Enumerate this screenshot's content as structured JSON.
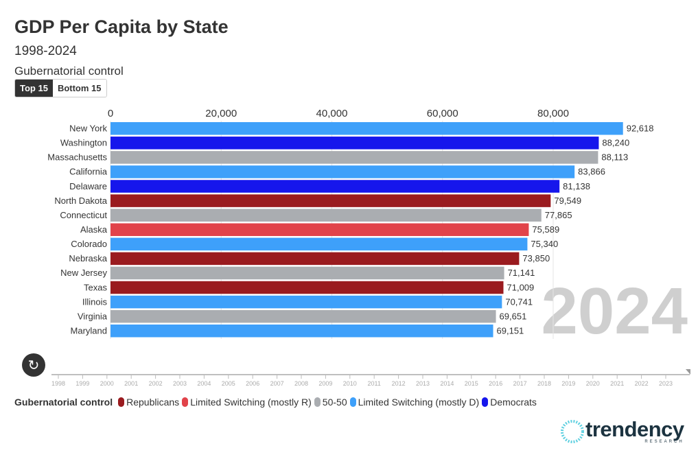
{
  "header": {
    "title": "GDP Per Capita by State",
    "subtitle": "1998-2024",
    "control_label": "Gubernatorial control"
  },
  "toggle": {
    "options": [
      "Top 15",
      "Bottom 15"
    ],
    "selected": "Top 15"
  },
  "colors": {
    "Republicans": "#9a1b1f",
    "Limited Switching (mostly R)": "#e1434a",
    "50-50": "#aaadb1",
    "Limited Switching (mostly D)": "#3ea0fa",
    "Democrats": "#1616ec"
  },
  "chart_data": {
    "type": "bar",
    "orientation": "horizontal",
    "title": "GDP Per Capita by State",
    "subtitle": "1998-2024",
    "year_label": "2024",
    "xlim": [
      0,
      100000
    ],
    "x_ticks": [
      0,
      20000,
      40000,
      60000,
      80000
    ],
    "x_tick_labels": [
      "0",
      "20,000",
      "40,000",
      "60,000",
      "80,000"
    ],
    "categories": [
      "New York",
      "Washington",
      "Massachusetts",
      "California",
      "Delaware",
      "North Dakota",
      "Connecticut",
      "Alaska",
      "Colorado",
      "Nebraska",
      "New Jersey",
      "Texas",
      "Illinois",
      "Virginia",
      "Maryland"
    ],
    "values": [
      92618,
      88240,
      88113,
      83866,
      81138,
      79549,
      77865,
      75589,
      75340,
      73850,
      71141,
      71009,
      70741,
      69651,
      69151
    ],
    "value_labels": [
      "92,618",
      "88,240",
      "88,113",
      "83,866",
      "81,138",
      "79,549",
      "77,865",
      "75,589",
      "75,340",
      "73,850",
      "71,141",
      "71,009",
      "70,741",
      "69,651",
      "69,151"
    ],
    "groups": [
      "Limited Switching (mostly D)",
      "Democrats",
      "50-50",
      "Limited Switching (mostly D)",
      "Democrats",
      "Republicans",
      "50-50",
      "Limited Switching (mostly R)",
      "Limited Switching (mostly D)",
      "Republicans",
      "50-50",
      "Republicans",
      "Limited Switching (mostly D)",
      "50-50",
      "Limited Switching (mostly D)"
    ],
    "legend": {
      "title": "Gubernatorial control",
      "entries": [
        "Republicans",
        "Limited Switching (mostly R)",
        "50-50",
        "Limited Switching (mostly D)",
        "Democrats"
      ],
      "placement": "bottom-left"
    }
  },
  "timeline": {
    "years": [
      "1998",
      "1999",
      "2000",
      "2001",
      "2002",
      "2003",
      "2004",
      "2005",
      "2006",
      "2007",
      "2008",
      "2009",
      "2010",
      "2011",
      "2012",
      "2013",
      "2014",
      "2015",
      "2016",
      "2017",
      "2018",
      "2019",
      "2020",
      "2021",
      "2022",
      "2023"
    ],
    "current": "2024"
  },
  "logo": {
    "word": "trendency",
    "sub": "RESEARCH"
  }
}
